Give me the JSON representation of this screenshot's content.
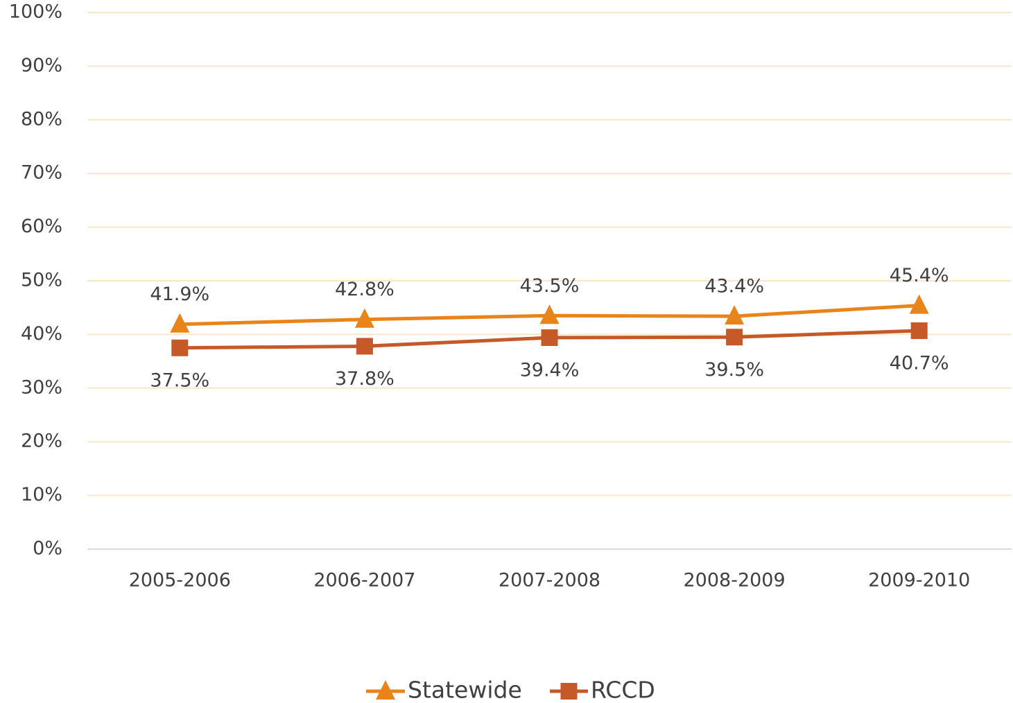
{
  "chart_data": {
    "type": "line",
    "categories": [
      "2005-2006",
      "2006-2007",
      "2007-2008",
      "2008-2009",
      "2009-2010"
    ],
    "series": [
      {
        "name": "Statewide",
        "color": "#e8841a",
        "marker": "triangle",
        "values": [
          41.9,
          42.8,
          43.5,
          43.4,
          45.4
        ],
        "value_labels": [
          "41.9%",
          "42.8%",
          "43.5%",
          "43.4%",
          "45.4%"
        ]
      },
      {
        "name": "RCCD",
        "color": "#c55a28",
        "marker": "square",
        "values": [
          37.5,
          37.8,
          39.4,
          39.5,
          40.7
        ],
        "value_labels": [
          "37.5%",
          "37.8%",
          "39.4%",
          "39.5%",
          "40.7%"
        ]
      }
    ],
    "ylim": [
      0,
      100
    ],
    "yticks": [
      {
        "value": 0,
        "label": "0%"
      },
      {
        "value": 10,
        "label": "10%"
      },
      {
        "value": 20,
        "label": "20%"
      },
      {
        "value": 30,
        "label": "30%"
      },
      {
        "value": 40,
        "label": "40%"
      },
      {
        "value": 50,
        "label": "50%"
      },
      {
        "value": 60,
        "label": "60%"
      },
      {
        "value": 70,
        "label": "70%"
      },
      {
        "value": 80,
        "label": "80%"
      },
      {
        "value": 90,
        "label": "90%"
      },
      {
        "value": 100,
        "label": "100%"
      }
    ],
    "grid": true,
    "legend": "bottom"
  }
}
